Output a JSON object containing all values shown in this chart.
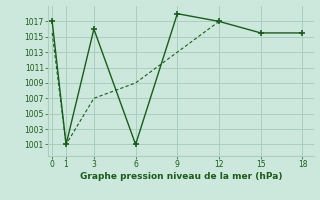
{
  "line1_x": [
    0,
    1,
    3,
    6,
    9,
    12,
    15,
    18
  ],
  "line1_y": [
    1017,
    1001,
    1016,
    1001,
    1018,
    1017,
    1015.5,
    1015.5
  ],
  "line2_x": [
    0,
    1,
    3,
    6,
    9,
    12
  ],
  "line2_y": [
    1015.5,
    1001,
    1007,
    1009,
    1013,
    1017
  ],
  "line_color": "#1a5c1a",
  "bg_color": "#cce8dc",
  "grid_color": "#aacfbf",
  "xlabel": "Graphe pression niveau de la mer (hPa)",
  "xticks": [
    0,
    1,
    3,
    6,
    9,
    12,
    15,
    18
  ],
  "yticks": [
    1001,
    1003,
    1005,
    1007,
    1009,
    1011,
    1013,
    1015,
    1017
  ],
  "ylim": [
    999.5,
    1019
  ],
  "xlim": [
    -0.3,
    18.8
  ]
}
